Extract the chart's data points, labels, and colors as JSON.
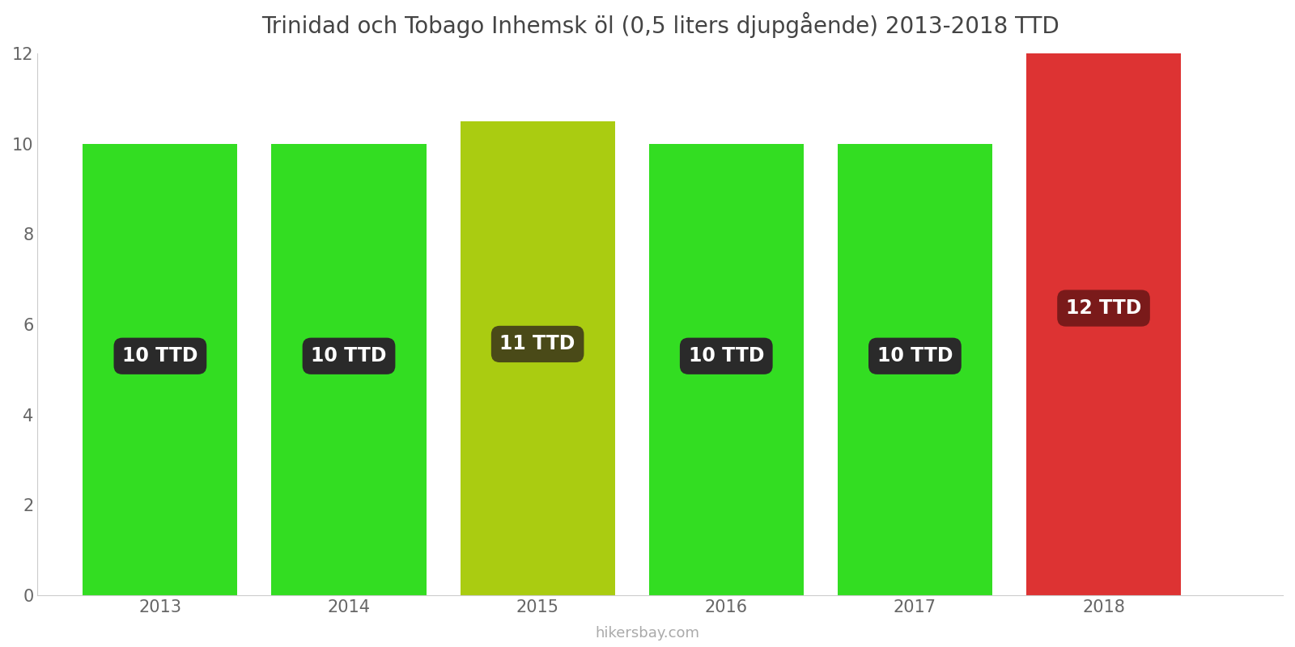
{
  "title": "Trinidad och Tobago Inhemsk öl (0,5 liters djupgående) 2013-2018 TTD",
  "years": [
    2013,
    2014,
    2015,
    2016,
    2017,
    2018
  ],
  "values": [
    10.0,
    10.0,
    10.5,
    10.0,
    10.0,
    12.0
  ],
  "labels": [
    "10 TTD",
    "10 TTD",
    "11 TTD",
    "10 TTD",
    "10 TTD",
    "12 TTD"
  ],
  "bar_colors": [
    "#33dd22",
    "#33dd22",
    "#aacc11",
    "#33dd22",
    "#33dd22",
    "#dd3333"
  ],
  "label_bg_colors": [
    "#2a2a2a",
    "#2a2a2a",
    "#4a4a18",
    "#2a2a2a",
    "#2a2a2a",
    "#7a1a1a"
  ],
  "ylim": [
    0,
    12
  ],
  "yticks": [
    0,
    2,
    4,
    6,
    8,
    10,
    12
  ],
  "xlim_left": 2012.35,
  "xlim_right": 2018.95,
  "background_color": "#ffffff",
  "watermark": "hikersbay.com",
  "title_fontsize": 20,
  "label_fontsize": 17,
  "tick_fontsize": 15,
  "bar_width": 0.82
}
